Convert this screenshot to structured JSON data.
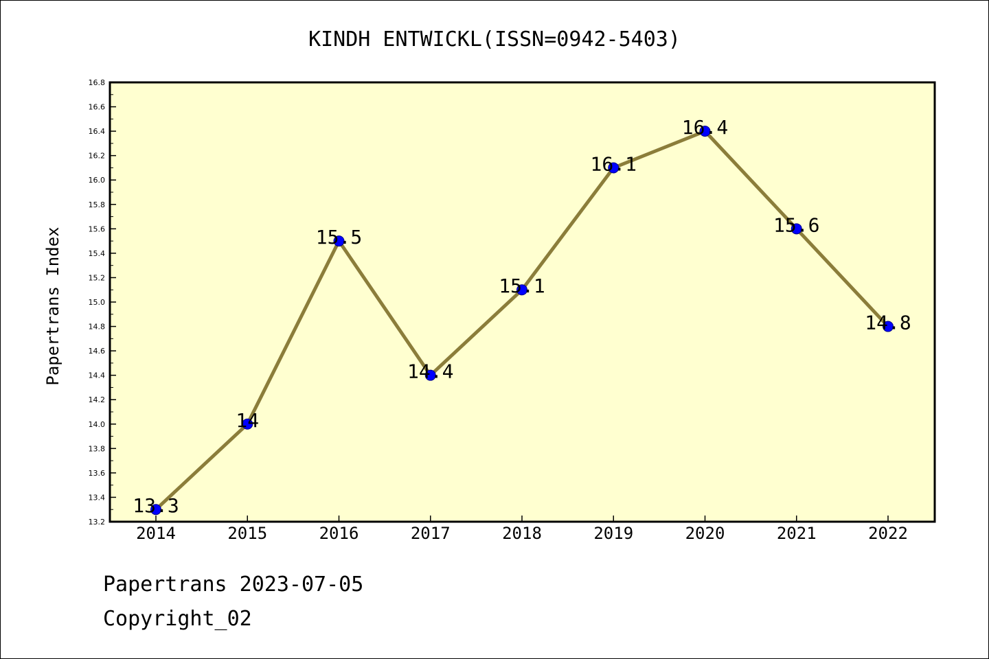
{
  "chart_data": {
    "type": "line",
    "title": "KINDH ENTWICKL(ISSN=0942-5403)",
    "xlabel": "",
    "ylabel": "Papertrans Index",
    "categories": [
      "2014",
      "2015",
      "2016",
      "2017",
      "2018",
      "2019",
      "2020",
      "2021",
      "2022"
    ],
    "series": [
      {
        "values": [
          13.3,
          14.0,
          15.5,
          14.4,
          15.1,
          16.1,
          16.4,
          15.6,
          14.8
        ],
        "labels": [
          "13.3",
          "14",
          "15.5",
          "14.4",
          "15.1",
          "16.1",
          "16.4",
          "15.6",
          "14.8"
        ],
        "line_color": "#8b7d3a",
        "marker_color": "#0000ff"
      }
    ],
    "ylim": [
      13.2,
      16.8
    ],
    "yticks": [
      "13.2",
      "13.4",
      "13.6",
      "13.8",
      "14.0",
      "14.2",
      "14.4",
      "14.6",
      "14.8",
      "15.0",
      "15.2",
      "15.4",
      "15.6",
      "15.8",
      "16.0",
      "16.2",
      "16.4",
      "16.6",
      "16.8"
    ],
    "plot_background": "#ffffd0",
    "grid": false
  },
  "footer": {
    "line1": "Papertrans 2023-07-05",
    "line2": "Copyright_02"
  }
}
